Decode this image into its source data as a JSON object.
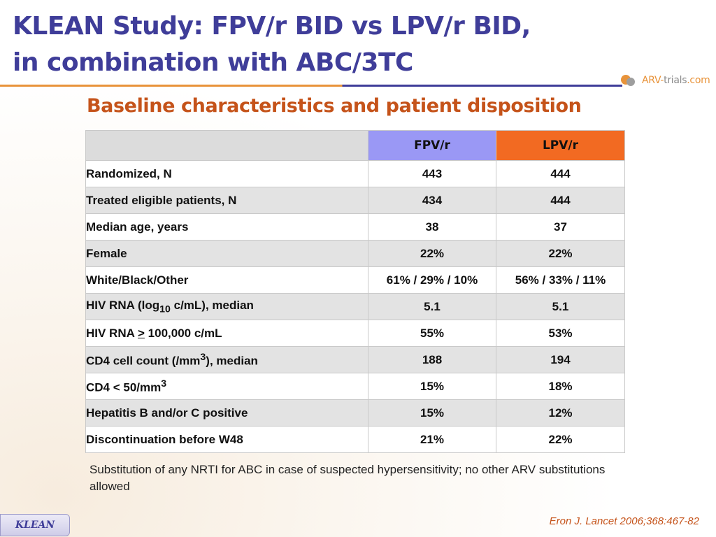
{
  "title": {
    "line1": "KLEAN Study: FPV/r BID vs LPV/r BID,",
    "line2": "in combination with ABC/3TC"
  },
  "logo": {
    "arv": "ARV-",
    "trials": "trials",
    "com": ".com"
  },
  "subtitle": "Baseline characteristics and patient disposition",
  "table": {
    "columns": [
      "",
      "FPV/r",
      "LPV/r"
    ],
    "rows": [
      {
        "label": "Randomized, N",
        "fpv": "443",
        "lpv": "444"
      },
      {
        "label": "Treated eligible patients, N",
        "fpv": "434",
        "lpv": "444"
      },
      {
        "label": "Median age, years",
        "fpv": "38",
        "lpv": "37"
      },
      {
        "label": "Female",
        "fpv": "22%",
        "lpv": "22%"
      },
      {
        "label": "White/Black/Other",
        "fpv": "61% / 29% / 10%",
        "lpv": "56% / 33% / 11%"
      },
      {
        "label_pre": "HIV RNA (log",
        "label_sub": "10",
        "label_post": " c/mL), median",
        "fpv": "5.1",
        "lpv": "5.1"
      },
      {
        "label_pre": "HIV RNA ",
        "label_u": ">",
        "label_post": " 100,000 c/mL",
        "fpv": "55%",
        "lpv": "53%"
      },
      {
        "label_pre": "CD4 cell count (/mm",
        "label_sup": "3",
        "label_post": "), median",
        "fpv": "188",
        "lpv": "194"
      },
      {
        "label_pre": "CD4 < 50/mm",
        "label_sup": "3",
        "fpv": "15%",
        "lpv": "18%"
      },
      {
        "label": "Hepatitis B and/or C positive",
        "fpv": "15%",
        "lpv": "12%"
      },
      {
        "label": "Discontinuation before W48",
        "fpv": "21%",
        "lpv": "22%"
      }
    ]
  },
  "footnote": "Substitution of any NRTI for ABC in case of suspected hypersensitivity; no other ARV substitutions allowed",
  "reference": "Eron J. Lancet 2006;368:467-82",
  "badge": "KLEAN",
  "colors": {
    "title": "#3f3d99",
    "subtitle": "#c5531a",
    "fpv_header": "#9a98f5",
    "lpv_header": "#f26a22"
  }
}
